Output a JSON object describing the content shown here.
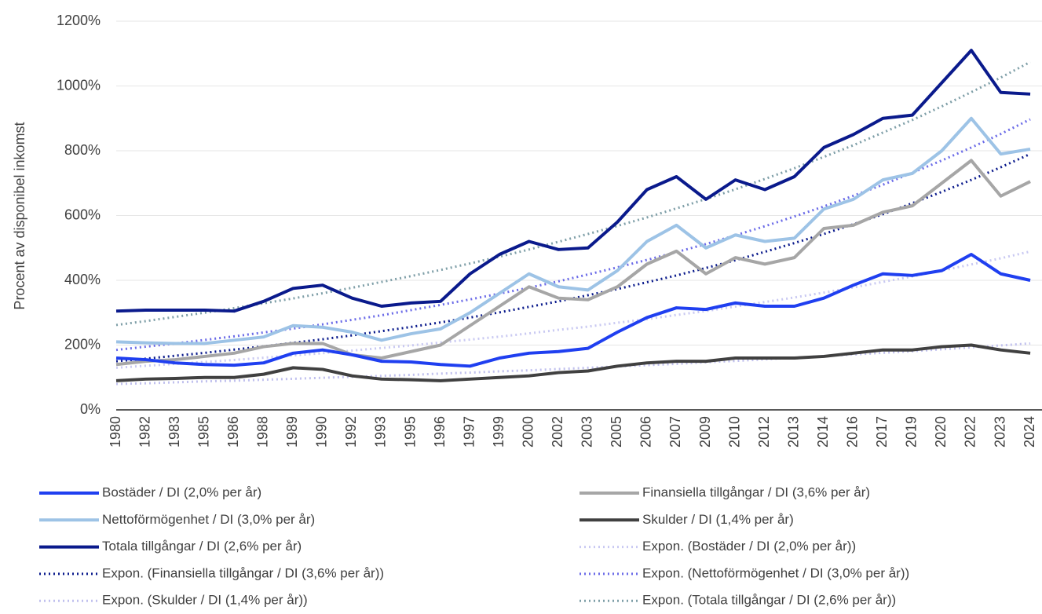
{
  "chart_data": {
    "type": "line",
    "y_label": "Procent av disponibel inkomst",
    "categories": [
      "1980",
      "1982",
      "1983",
      "1985",
      "1986",
      "1988",
      "1989",
      "1990",
      "1992",
      "1993",
      "1995",
      "1996",
      "1997",
      "1999",
      "2000",
      "2002",
      "2003",
      "2005",
      "2006",
      "2007",
      "2009",
      "2010",
      "2012",
      "2013",
      "2014",
      "2016",
      "2017",
      "2019",
      "2020",
      "2022",
      "2023",
      "2024"
    ],
    "ylim": [
      0,
      1200
    ],
    "yticks": [
      {
        "value": 0,
        "label": "0%"
      },
      {
        "value": 200,
        "label": "200%"
      },
      {
        "value": 400,
        "label": "400%"
      },
      {
        "value": 600,
        "label": "600%"
      },
      {
        "value": 800,
        "label": "800%"
      },
      {
        "value": 1000,
        "label": "1000%"
      },
      {
        "value": 1200,
        "label": "1200%"
      }
    ],
    "grid": true,
    "legend": "bottom",
    "series": [
      {
        "name": "Bostäder / DI (2,0% per år)",
        "color": "#1f3ff0",
        "style": "solid",
        "values": [
          160,
          155,
          145,
          140,
          138,
          145,
          175,
          185,
          170,
          150,
          148,
          140,
          135,
          160,
          175,
          180,
          190,
          240,
          285,
          315,
          310,
          330,
          320,
          320,
          345,
          385,
          420,
          415,
          430,
          480,
          420,
          400
        ]
      },
      {
        "name": "Finansiella tillgångar / DI (3,6% per år)",
        "color": "#a6a6a6",
        "style": "solid",
        "values": [
          140,
          150,
          155,
          165,
          175,
          195,
          205,
          205,
          170,
          160,
          180,
          200,
          260,
          320,
          380,
          345,
          340,
          380,
          450,
          490,
          420,
          470,
          450,
          470,
          560,
          570,
          610,
          630,
          700,
          770,
          660,
          705
        ]
      },
      {
        "name": "Nettoförmögenhet / DI (3,0% per år)",
        "color": "#9dc3e6",
        "style": "solid",
        "values": [
          210,
          207,
          205,
          205,
          215,
          225,
          260,
          255,
          240,
          215,
          235,
          250,
          300,
          360,
          420,
          380,
          370,
          430,
          520,
          570,
          500,
          540,
          520,
          530,
          620,
          650,
          710,
          730,
          800,
          900,
          790,
          805
        ]
      },
      {
        "name": "Skulder / DI (1,4% per år)",
        "color": "#404040",
        "style": "solid",
        "values": [
          90,
          95,
          97,
          100,
          100,
          110,
          130,
          125,
          105,
          95,
          93,
          90,
          95,
          100,
          105,
          115,
          120,
          135,
          145,
          150,
          150,
          160,
          160,
          160,
          165,
          175,
          185,
          185,
          195,
          200,
          185,
          175
        ]
      },
      {
        "name": "Totala tillgångar / DI (2,6% per år)",
        "color": "#0a1a8c",
        "style": "solid",
        "values": [
          305,
          308,
          308,
          308,
          305,
          335,
          375,
          385,
          345,
          320,
          330,
          335,
          420,
          480,
          520,
          495,
          500,
          580,
          680,
          720,
          650,
          710,
          680,
          720,
          810,
          850,
          900,
          910,
          1010,
          1110,
          980,
          975
        ]
      },
      {
        "name": "Expon. (Bostäder / DI (2,0% per år))",
        "color": "#c9c9f2",
        "style": "dotted",
        "values": [
          130,
          136,
          142,
          148,
          154,
          161,
          168,
          175,
          183,
          191,
          199,
          208,
          217,
          226,
          236,
          247,
          257,
          269,
          280,
          293,
          305,
          319,
          333,
          347,
          362,
          378,
          395,
          412,
          430,
          449,
          468,
          489
        ]
      },
      {
        "name": "Expon. (Finansiella tillgångar / DI (3,6% per år))",
        "color": "#0a1a8c",
        "style": "dotted",
        "values": [
          150,
          158,
          167,
          176,
          186,
          196,
          207,
          218,
          230,
          243,
          256,
          270,
          285,
          301,
          318,
          335,
          354,
          373,
          394,
          415,
          438,
          462,
          488,
          515,
          543,
          573,
          604,
          638,
          673,
          710,
          749,
          790
        ]
      },
      {
        "name": "Expon. (Nettoförmögenhet / DI (3,0% per år))",
        "color": "#6b6be8",
        "style": "dotted",
        "values": [
          185,
          195,
          205,
          216,
          227,
          239,
          251,
          264,
          278,
          292,
          308,
          324,
          341,
          359,
          377,
          397,
          418,
          440,
          463,
          487,
          512,
          539,
          567,
          597,
          628,
          661,
          695,
          732,
          770,
          810,
          852,
          897
        ]
      },
      {
        "name": "Expon. (Skulder / DI (1,4% per år))",
        "color": "#c0c0ee",
        "style": "dotted",
        "values": [
          80,
          82,
          85,
          88,
          90,
          93,
          96,
          99,
          102,
          105,
          108,
          112,
          115,
          119,
          122,
          126,
          130,
          134,
          138,
          142,
          147,
          151,
          156,
          161,
          166,
          171,
          176,
          181,
          187,
          193,
          199,
          205
        ]
      },
      {
        "name": "Expon. (Totala tillgångar / DI (2,6% per år))",
        "color": "#7f9fa8",
        "style": "dotted",
        "values": [
          262,
          274,
          287,
          300,
          314,
          329,
          344,
          360,
          377,
          395,
          413,
          432,
          452,
          473,
          495,
          519,
          543,
          568,
          594,
          622,
          651,
          681,
          713,
          746,
          781,
          817,
          856,
          895,
          937,
          981,
          1026,
          1074
        ]
      }
    ]
  }
}
